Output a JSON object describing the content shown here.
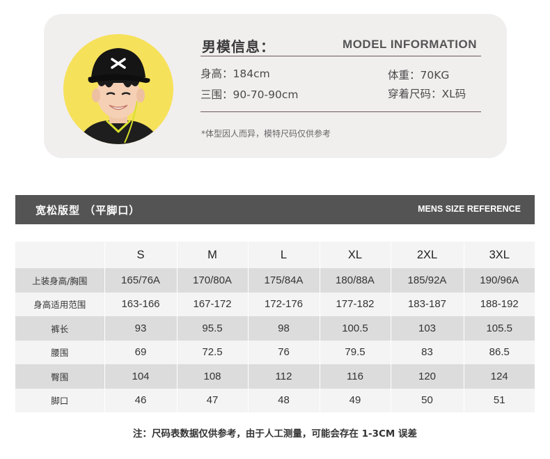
{
  "model_card": {
    "title_cn": "男模信息：",
    "title_en": "MODEL  INFORMATION",
    "height": "身高：184cm",
    "weight": "体重：70KG",
    "measurements": "三围：90-70-90cm",
    "size_worn": "穿着尺码：XL码",
    "note": "*体型因人而异，模特尺码仅供参考"
  },
  "table_header": {
    "left": "宽松版型  （平脚口）",
    "right": "MENS SIZE REFERENCE"
  },
  "size_table": {
    "columns": [
      "",
      "S",
      "M",
      "L",
      "XL",
      "2XL",
      "3XL"
    ],
    "rows": [
      {
        "label": "上装身高/胸围",
        "values": [
          "165/76A",
          "170/80A",
          "175/84A",
          "180/88A",
          "185/92A",
          "190/96A"
        ]
      },
      {
        "label": "身高适用范围",
        "values": [
          "163-166",
          "167-172",
          "172-176",
          "177-182",
          "183-187",
          "188-192"
        ]
      },
      {
        "label": "裤长",
        "values": [
          "93",
          "95.5",
          "98",
          "100.5",
          "103",
          "105.5"
        ]
      },
      {
        "label": "腰围",
        "values": [
          "69",
          "72.5",
          "76",
          "79.5",
          "83",
          "86.5"
        ]
      },
      {
        "label": "臀围",
        "values": [
          "104",
          "108",
          "112",
          "116",
          "120",
          "124"
        ]
      },
      {
        "label": "脚口",
        "values": [
          "46",
          "47",
          "48",
          "49",
          "50",
          "51"
        ]
      }
    ]
  },
  "footer_note": "注：尺码表数据仅供参考，由于人工测量，可能会存在 1-3CM 误差",
  "colors": {
    "card_bg": "#f1eeee",
    "avatar_bg": "#f6e15a",
    "bar_bg": "#545454",
    "row_light": "#f4f4f4",
    "row_dark": "#dcdcdc"
  }
}
